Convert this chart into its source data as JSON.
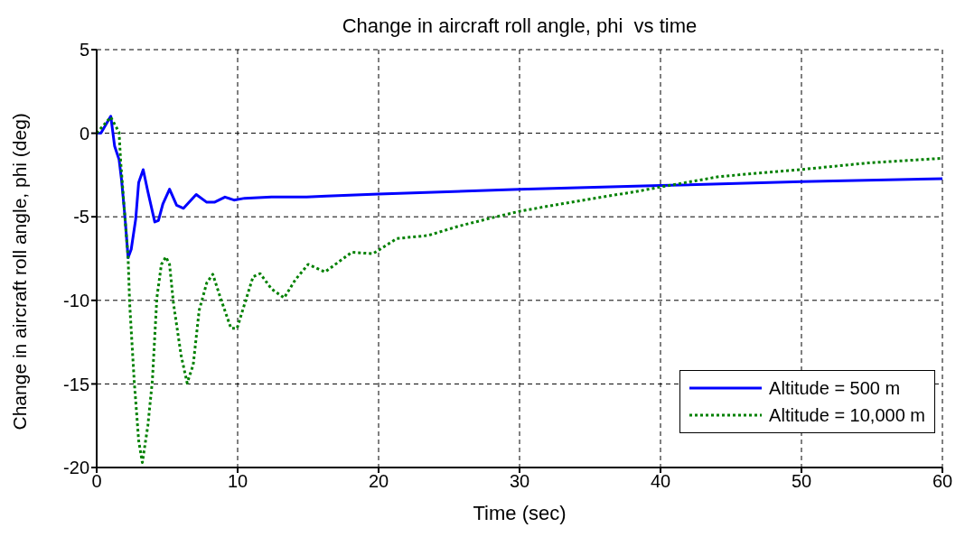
{
  "chart_data": {
    "type": "line",
    "title": "Change in aircraft roll angle, phi  vs time",
    "xlabel": "Time (sec)",
    "ylabel": "Change in aircraft roll angle, phi (deg)",
    "xlim": [
      0,
      60
    ],
    "xticks": [
      0,
      10,
      20,
      30,
      40,
      50,
      60
    ],
    "ylim": [
      -20,
      5
    ],
    "yticks": [
      -20,
      -15,
      -10,
      -5,
      0,
      5
    ],
    "grid": true,
    "legend": "bottom right",
    "marker": "none",
    "series": [
      {
        "name": "Altitude = 500 m",
        "color": "#0000ff",
        "line_style": "solid",
        "x": [
          0,
          0.3,
          1.0,
          1.27,
          1.59,
          1.76,
          2.0,
          2.23,
          2.45,
          2.77,
          2.98,
          3.3,
          3.63,
          4.12,
          4.38,
          4.7,
          5.17,
          5.67,
          6.16,
          7.06,
          7.81,
          8.35,
          9.1,
          9.74,
          10.5,
          12.4,
          14.9,
          16.3,
          20,
          30,
          40,
          50,
          60
        ],
        "values": [
          0,
          0,
          1.02,
          -0.76,
          -1.58,
          -2.76,
          -4.95,
          -7.45,
          -6.95,
          -5.13,
          -2.95,
          -2.18,
          -3.49,
          -5.31,
          -5.22,
          -4.22,
          -3.35,
          -4.31,
          -4.49,
          -3.67,
          -4.13,
          -4.13,
          -3.82,
          -4.0,
          -3.89,
          -3.82,
          -3.82,
          -3.76,
          -3.64,
          -3.35,
          -3.13,
          -2.9,
          -2.72
        ]
      },
      {
        "name": "Altitude = 10,000 m",
        "color": "#008000",
        "line_style": "dotted",
        "x": [
          0,
          1.0,
          1.59,
          1.7,
          2.0,
          2.23,
          2.34,
          2.66,
          2.98,
          3.24,
          3.63,
          3.95,
          4.27,
          4.59,
          4.91,
          5.17,
          5.45,
          5.99,
          6.42,
          6.85,
          7.27,
          7.81,
          8.24,
          8.78,
          9.53,
          9.96,
          10.5,
          11.1,
          11.6,
          12.4,
          13.3,
          14.1,
          15.0,
          16.2,
          18.1,
          19.6,
          21.3,
          23.5,
          25.6,
          27.7,
          30,
          33,
          36.2,
          38.2,
          40,
          44.2,
          50,
          54.7,
          60
        ],
        "values": [
          0,
          0.96,
          0.05,
          -1.67,
          -5.0,
          -7.45,
          -10.2,
          -14.8,
          -18.4,
          -19.7,
          -17.5,
          -14.8,
          -9.85,
          -7.85,
          -7.4,
          -7.85,
          -10.2,
          -13.3,
          -14.95,
          -13.85,
          -10.6,
          -8.95,
          -8.44,
          -9.85,
          -11.67,
          -11.67,
          -10.2,
          -8.58,
          -8.4,
          -9.31,
          -9.85,
          -8.76,
          -7.85,
          -8.3,
          -7.12,
          -7.21,
          -6.3,
          -6.12,
          -5.58,
          -5.13,
          -4.67,
          -4.22,
          -3.77,
          -3.5,
          -3.22,
          -2.59,
          -2.17,
          -1.78,
          -1.5
        ]
      }
    ]
  }
}
